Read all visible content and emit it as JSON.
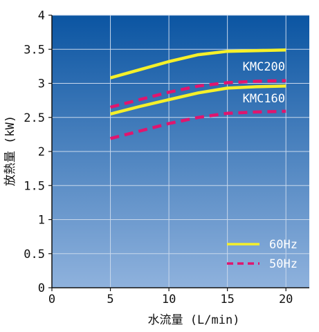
{
  "chart_data": {
    "type": "line",
    "xlabel": "水流量 (L/min)",
    "ylabel": "放熱量 (kW)",
    "xlim": [
      0,
      22
    ],
    "ylim": [
      0,
      4
    ],
    "xticks": [
      0,
      5,
      10,
      15,
      20
    ],
    "xtick_labels": [
      "0",
      "5",
      "10",
      "15",
      "20"
    ],
    "yticks": [
      0,
      0.5,
      1,
      1.5,
      2,
      2.5,
      3,
      3.5,
      4
    ],
    "ytick_labels": [
      "0",
      "0.5",
      "1",
      "1.5",
      "2",
      "2.5",
      "3",
      "3.5",
      "4"
    ],
    "grid": true,
    "background_gradient": [
      "#0b55a2",
      "#8fb2dd"
    ],
    "grid_color": "#c9d8ec",
    "legend": {
      "placement": "bottom-right",
      "entries": [
        {
          "label": "60Hz",
          "color": "#f5f02a",
          "style": "solid"
        },
        {
          "label": "50Hz",
          "color": "#e0156e",
          "style": "dashed"
        }
      ]
    },
    "annotations": [
      {
        "text": "KMC200",
        "x": 16.3,
        "y": 3.25
      },
      {
        "text": "KMC160",
        "x": 16.3,
        "y": 2.78
      }
    ],
    "series": [
      {
        "model": "KMC200",
        "frequency": "60Hz",
        "color": "#f5f02a",
        "style": "solid",
        "x": [
          5,
          7.5,
          10,
          12.5,
          15,
          17.5,
          20
        ],
        "y": [
          3.08,
          3.2,
          3.32,
          3.42,
          3.47,
          3.48,
          3.49
        ]
      },
      {
        "model": "KMC200",
        "frequency": "50Hz",
        "color": "#e0156e",
        "style": "dashed",
        "x": [
          5,
          7.5,
          10,
          12.5,
          15,
          17.5,
          20
        ],
        "y": [
          2.65,
          2.76,
          2.87,
          2.96,
          3.01,
          3.03,
          3.04
        ]
      },
      {
        "model": "KMC160",
        "frequency": "60Hz",
        "color": "#f5f02a",
        "style": "solid",
        "x": [
          5,
          7.5,
          10,
          12.5,
          15,
          17.5,
          20
        ],
        "y": [
          2.55,
          2.66,
          2.76,
          2.86,
          2.93,
          2.95,
          2.96
        ]
      },
      {
        "model": "KMC160",
        "frequency": "50Hz",
        "color": "#e0156e",
        "style": "dashed",
        "x": [
          5,
          7.5,
          10,
          12.5,
          15,
          17.5,
          20
        ],
        "y": [
          2.19,
          2.3,
          2.41,
          2.5,
          2.56,
          2.58,
          2.59
        ]
      }
    ]
  }
}
